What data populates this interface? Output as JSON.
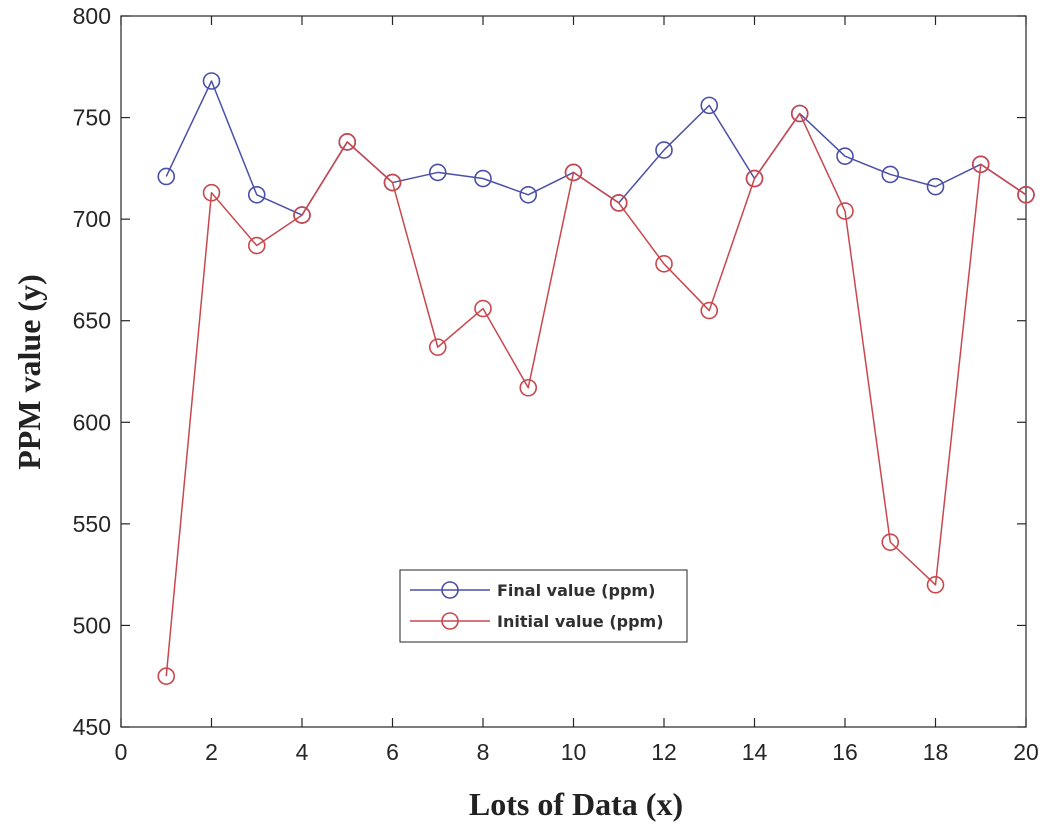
{
  "chart_data": {
    "type": "line",
    "title": "",
    "xlabel": "Lots of Data (x)",
    "ylabel": "PPM value (y)",
    "xlim": [
      0,
      20
    ],
    "ylim": [
      450,
      800
    ],
    "xticks": [
      "0",
      "2",
      "4",
      "6",
      "8",
      "10",
      "12",
      "14",
      "16",
      "18",
      "20"
    ],
    "yticks": [
      "450",
      "500",
      "550",
      "600",
      "650",
      "700",
      "750",
      "800"
    ],
    "grid": false,
    "legend_position": "bottom-center",
    "x": [
      1,
      2,
      3,
      4,
      5,
      6,
      7,
      8,
      9,
      10,
      11,
      12,
      13,
      14,
      15,
      16,
      17,
      18,
      19,
      20
    ],
    "series": [
      {
        "name": "Final value (ppm)",
        "color": "#4a4fa8",
        "marker": "circle",
        "values": [
          721,
          768,
          712,
          702,
          738,
          718,
          723,
          720,
          712,
          723,
          708,
          734,
          756,
          720,
          752,
          731,
          722,
          716,
          727,
          712
        ]
      },
      {
        "name": "Initial value (ppm)",
        "color": "#c8484e",
        "marker": "circle",
        "values": [
          475,
          713,
          687,
          702,
          738,
          718,
          637,
          656,
          617,
          723,
          708,
          678,
          655,
          720,
          752,
          704,
          541,
          520,
          727,
          712
        ]
      }
    ]
  }
}
